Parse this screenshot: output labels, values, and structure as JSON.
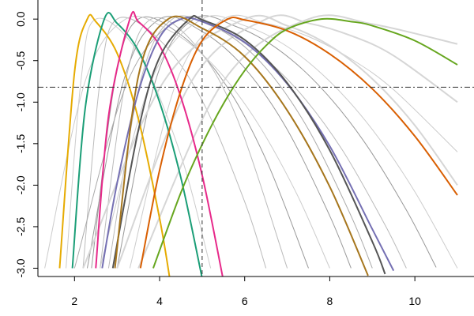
{
  "chart_data": {
    "type": "line",
    "xlim": [
      1.14,
      11.39
    ],
    "ylim": [
      -3.1,
      0.23
    ],
    "xticks": [
      2,
      4,
      6,
      8,
      10
    ],
    "yticks": [
      {
        "value": 0,
        "label": "0.0"
      },
      -0.5,
      {
        "value": -1,
        "label": "-1.0"
      },
      -1.5,
      {
        "value": -2,
        "label": "-2.0"
      },
      -2.5,
      {
        "value": -3,
        "label": "-3.0"
      }
    ],
    "vline": 5,
    "hline": -0.82,
    "series": [
      {
        "color": "#cccccc",
        "x": [
          1.8,
          2.15,
          2.5,
          3.5,
          4.5,
          5.2
        ],
        "values": [
          -3,
          -0.75,
          0,
          -0.41,
          -1.64,
          -3
        ]
      },
      {
        "color": "#bbbbbb",
        "x": [
          2.2,
          2.6,
          3,
          4,
          5,
          6,
          6.5
        ],
        "values": [
          -3,
          -0.75,
          0,
          -0.25,
          -0.98,
          -2.2,
          -3
        ]
      },
      {
        "color": "#999999",
        "x": [
          2.4,
          2.95,
          3.5,
          4.5,
          5.5,
          6.5,
          7.5
        ],
        "values": [
          -3,
          -0.75,
          0,
          -0.19,
          -0.75,
          -1.69,
          -3
        ]
      },
      {
        "color": "#bbbbbb",
        "x": [
          2.6,
          3.2,
          3.8,
          4.8,
          5.8,
          7
        ],
        "values": [
          -3,
          -0.75,
          0,
          -0.29,
          -1.17,
          -3
        ]
      },
      {
        "color": "#999999",
        "x": [
          2.3,
          3.15,
          4,
          5,
          6,
          7,
          8,
          8.5
        ],
        "values": [
          -3,
          -0.75,
          0,
          -0.15,
          -0.59,
          -1.33,
          -2.37,
          -3
        ]
      },
      {
        "color": "#bbbbbb",
        "x": [
          2.8,
          3.55,
          4.3,
          5.3,
          6.3,
          7.3,
          8.3,
          9.3,
          9.8
        ],
        "values": [
          -3,
          -0.75,
          0,
          -0.1,
          -0.4,
          -0.89,
          -1.58,
          -2.48,
          -3
        ]
      },
      {
        "color": "#999999",
        "x": [
          3,
          3.9,
          4.8,
          5.8,
          6.8,
          7.8,
          8.8,
          9.8,
          10.5
        ],
        "values": [
          -3,
          -0.75,
          0,
          -0.09,
          -0.37,
          -0.83,
          -1.47,
          -2.3,
          -2.99
        ]
      },
      {
        "color": "#cccccc",
        "x": [
          2.6,
          3.8,
          5,
          6,
          7,
          8,
          9,
          10,
          11
        ],
        "values": [
          -3,
          -0.75,
          0,
          -0.08,
          -0.33,
          -0.75,
          -1.33,
          -2.08,
          -3
        ]
      },
      {
        "color": "#cccccc",
        "x": [
          3.3,
          4.4,
          5.5,
          6.5,
          7.5,
          8.5,
          9.5,
          11
        ],
        "values": [
          -3,
          -0.75,
          0,
          -0.05,
          -0.21,
          -0.48,
          -0.85,
          -1.6
        ]
      },
      {
        "color": "#d6d6d6",
        "x": [
          3,
          4.75,
          6.5,
          7.5,
          8.5,
          9.5,
          11
        ],
        "values": [
          -3,
          -0.75,
          0,
          -0.05,
          -0.2,
          -0.44,
          -1.0
        ]
      },
      {
        "color": "#d6d6d6",
        "x": [
          3.5,
          5.5,
          7.5,
          9,
          11
        ],
        "values": [
          -3,
          -0.75,
          0,
          -0.06,
          -0.3
        ]
      },
      {
        "color": "#cccccc",
        "x": [
          1.3,
          2.25,
          3.2,
          4.2,
          5.2,
          6.2,
          7.2,
          8
        ],
        "values": [
          -3,
          -0.75,
          0,
          -0.13,
          -0.52,
          -1.17,
          -2.08,
          -3
        ]
      },
      {
        "color": "#aaaaaa",
        "x": [
          2,
          3.25,
          4.5,
          5.5,
          6.5,
          7.5,
          8.5,
          9
        ],
        "values": [
          -3,
          -0.75,
          0,
          -0.15,
          -0.59,
          -1.33,
          -2.37,
          -3
        ]
      },
      {
        "color": "#d6d6d6",
        "x": [
          2.2,
          4.1,
          6,
          7,
          8,
          9,
          10,
          11
        ],
        "values": [
          -3,
          -0.75,
          0,
          -0.08,
          -0.32,
          -0.72,
          -1.28,
          -2
        ]
      },
      {
        "color": "#e6ab02",
        "x": [
          1.65,
          2,
          2.3,
          2.5,
          3,
          3.5,
          4,
          4.25
        ],
        "values": [
          -3.0,
          -0.64,
          0,
          -0.03,
          -0.41,
          -1.2,
          -2.4,
          -3.16
        ]
      },
      {
        "color": "#1b9e77",
        "x": [
          1.95,
          2.25,
          2.7,
          3,
          3.5,
          4,
          4.5,
          5
        ],
        "values": [
          -3.0,
          -1.08,
          0,
          -0.05,
          -0.38,
          -1.0,
          -1.91,
          -3.12
        ]
      },
      {
        "color": "#e7298a",
        "x": [
          2.5,
          2.8,
          3.3,
          3.5,
          4,
          4.5,
          5,
          5.5
        ],
        "values": [
          -3.0,
          -1.17,
          0,
          -0.03,
          -0.32,
          -0.94,
          -1.88,
          -3.15
        ]
      },
      {
        "color": "#7570b3",
        "x": [
          2.65,
          3,
          3.5,
          4,
          4.5,
          5,
          6,
          7,
          8,
          9,
          9.5
        ],
        "values": [
          -3.0,
          -1.98,
          -0.88,
          -0.22,
          0,
          -0.03,
          -0.28,
          -0.78,
          -1.53,
          -2.53,
          -3.03
        ]
      },
      {
        "color": "#555555",
        "x": [
          2.9,
          3.5,
          4,
          4.7,
          5,
          6,
          7,
          8,
          9,
          9.3
        ],
        "values": [
          -3.0,
          -1.34,
          -0.46,
          0,
          -0.01,
          -0.25,
          -0.77,
          -1.58,
          -2.68,
          -3.07
        ]
      },
      {
        "color": "#a6761d",
        "x": [
          2.95,
          3.5,
          4.2,
          5,
          6,
          7,
          8,
          8.9
        ],
        "values": [
          -3.0,
          -0.69,
          0,
          -0.11,
          -0.45,
          -1.1,
          -2.02,
          -3.09
        ]
      },
      {
        "color": "#d95f02",
        "x": [
          3.55,
          4,
          4.5,
          5,
          5.6,
          6,
          7,
          8,
          9,
          10,
          11
        ],
        "values": [
          -3.0,
          -1.82,
          -0.86,
          -0.26,
          0,
          -0.01,
          -0.14,
          -0.42,
          -0.84,
          -1.41,
          -2.12
        ]
      },
      {
        "color": "#66a61e",
        "x": [
          3.85,
          4.5,
          5,
          5.5,
          6,
          6.5,
          7,
          7.8,
          8.5,
          9,
          10,
          11
        ],
        "values": [
          -3.0,
          -2.09,
          -1.51,
          -1.02,
          -0.62,
          -0.32,
          -0.12,
          0,
          -0.03,
          -0.08,
          -0.26,
          -0.55
        ]
      }
    ]
  }
}
